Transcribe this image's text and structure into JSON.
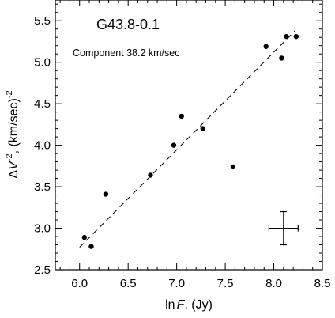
{
  "chart_data": {
    "type": "scatter",
    "title": "G43.8-0.1",
    "annotation": "Component 38.2 km/sec",
    "xlabel": {
      "prefix": "ln",
      "var": "F",
      "suffix": ", (Jy)"
    },
    "ylabel": {
      "prefix": "Δ",
      "var": "V",
      "exp": "-2",
      "suffix": ",  (km/sec)",
      "unit_exp": "-2"
    },
    "xlim": [
      5.75,
      8.5
    ],
    "ylim": [
      2.5,
      5.75
    ],
    "xticks": [
      "6.0",
      "6.5",
      "7.0",
      "7.5",
      "8.0",
      "8.5"
    ],
    "yticks": [
      "2.5",
      "3.0",
      "3.5",
      "4.0",
      "4.5",
      "5.0",
      "5.5"
    ],
    "points": [
      {
        "x": 6.05,
        "y": 2.89
      },
      {
        "x": 6.12,
        "y": 2.78
      },
      {
        "x": 6.27,
        "y": 3.41
      },
      {
        "x": 6.73,
        "y": 3.64
      },
      {
        "x": 6.97,
        "y": 4.0
      },
      {
        "x": 7.05,
        "y": 4.35
      },
      {
        "x": 7.27,
        "y": 4.2
      },
      {
        "x": 7.58,
        "y": 3.74
      },
      {
        "x": 7.92,
        "y": 5.19
      },
      {
        "x": 8.08,
        "y": 5.05
      },
      {
        "x": 8.13,
        "y": 5.31
      },
      {
        "x": 8.23,
        "y": 5.31
      }
    ],
    "fit_line": {
      "x": [
        6.0,
        8.22
      ],
      "y": [
        2.77,
        5.38
      ],
      "style": "dashed"
    },
    "error_bar": {
      "x": 8.1,
      "y": 3.0,
      "dx": 0.15,
      "dy": 0.2
    },
    "grid": false,
    "legend": "none"
  }
}
